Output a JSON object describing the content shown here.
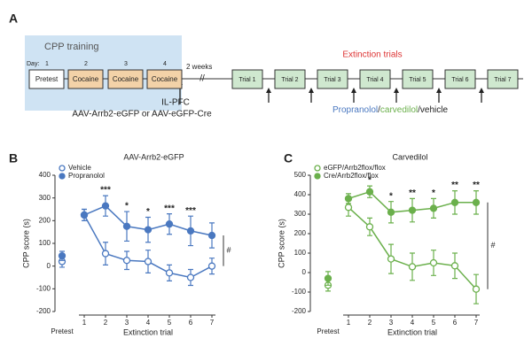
{
  "panel_a": {
    "label": "A",
    "training_label": "CPP training",
    "day_label": "Day:",
    "days": [
      "1",
      "2",
      "3",
      "4"
    ],
    "training_boxes": [
      "Pretest",
      "Cocaine",
      "Cocaine",
      "Cocaine"
    ],
    "gap_label": "2 weeks",
    "injection_site": "IL-PFC",
    "injection_virus": "AAV-Arrb2-eGFP or AAV-eGFP-Cre",
    "extinction_label": "Extinction trials",
    "trials": [
      "Trial 1",
      "Trial 2",
      "Trial 3",
      "Trial 4",
      "Trial 5",
      "Trial 6",
      "Trial 7"
    ],
    "treatment": [
      {
        "text": "Propranolol",
        "color": "#4a78c0"
      },
      {
        "text": "/",
        "color": "#222222"
      },
      {
        "text": "carvedilol",
        "color": "#6bb04c"
      },
      {
        "text": "/vehicle",
        "color": "#222222"
      }
    ]
  },
  "chart_data": [
    {
      "type": "line",
      "panel": "B",
      "title": "AAV-Arrb2-eGFP",
      "y_label": "CPP score (s)",
      "x_label": "Extinction trial",
      "categories": [
        "Pretest",
        "1",
        "2",
        "3",
        "4",
        "5",
        "6",
        "7"
      ],
      "ylim": [
        -200,
        400
      ],
      "yticks": [
        -200,
        -100,
        0,
        100,
        200,
        300,
        400
      ],
      "series": [
        {
          "name": "Vehicle",
          "color": "#4a78c0",
          "filled": false,
          "values": [
            20,
            225,
            55,
            25,
            20,
            -30,
            -50,
            0
          ],
          "errors": [
            25,
            25,
            50,
            40,
            50,
            35,
            35,
            35
          ]
        },
        {
          "name": "Propranolol",
          "color": "#4a78c0",
          "filled": true,
          "values": [
            45,
            225,
            265,
            175,
            160,
            185,
            155,
            135
          ],
          "errors": [
            20,
            25,
            45,
            65,
            55,
            45,
            65,
            55
          ]
        }
      ],
      "annotations": [
        {
          "x": "2",
          "label": "***"
        },
        {
          "x": "3",
          "label": "*"
        },
        {
          "x": "4",
          "label": "*"
        },
        {
          "x": "5",
          "label": "***"
        },
        {
          "x": "6",
          "label": "***"
        }
      ],
      "significance_label": "#"
    },
    {
      "type": "line",
      "panel": "C",
      "title": "Carvedilol",
      "y_label": "CPP score (s)",
      "x_label": "Extinction trial",
      "categories": [
        "Pretest",
        "1",
        "2",
        "3",
        "4",
        "5",
        "6",
        "7"
      ],
      "ylim": [
        -200,
        500
      ],
      "yticks": [
        -200,
        -100,
        0,
        100,
        200,
        300,
        400,
        500
      ],
      "series": [
        {
          "name": "eGFP/Arrb2flox/flox",
          "color": "#6bb04c",
          "filled": false,
          "values": [
            -65,
            335,
            235,
            70,
            30,
            50,
            35,
            -85
          ],
          "errors": [
            30,
            45,
            45,
            75,
            70,
            65,
            65,
            75
          ]
        },
        {
          "name": "Cre/Arrb2flox/flox",
          "color": "#6bb04c",
          "filled": true,
          "values": [
            -30,
            380,
            415,
            310,
            320,
            330,
            360,
            360
          ],
          "errors": [
            35,
            25,
            30,
            55,
            60,
            50,
            60,
            60
          ]
        }
      ],
      "annotations": [
        {
          "x": "2",
          "label": "*"
        },
        {
          "x": "3",
          "label": "*"
        },
        {
          "x": "4",
          "label": "**"
        },
        {
          "x": "5",
          "label": "*"
        },
        {
          "x": "6",
          "label": "**"
        },
        {
          "x": "7",
          "label": "**"
        }
      ],
      "significance_label": "#"
    }
  ]
}
